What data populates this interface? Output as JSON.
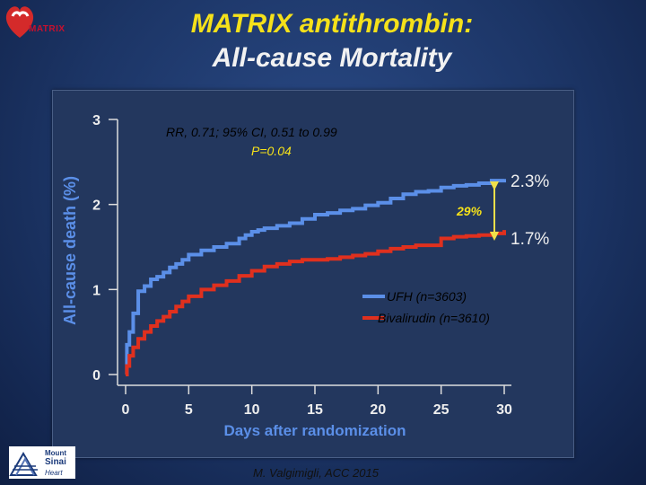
{
  "title": {
    "line1": "MATRIX antithrombin:",
    "line2": "All-cause Mortality"
  },
  "logo": {
    "text": "MATRIX"
  },
  "institution_logo": {
    "line1": "Mount",
    "line2": "Sinai",
    "line3": "Heart"
  },
  "footer": "M. Valgimigli, ACC 2015",
  "colors": {
    "ufh": "#5b8fe8",
    "bivalirudin": "#e0301e",
    "title_yellow": "#f5e11a",
    "arrow": "#f0e04a"
  },
  "chart_data": {
    "type": "line",
    "xlabel": "Days after randomization",
    "ylabel": "All-cause death (%)",
    "xlim": [
      0,
      30
    ],
    "ylim": [
      0,
      3
    ],
    "xticks": [
      0,
      5,
      10,
      15,
      20,
      25,
      30
    ],
    "yticks": [
      0,
      1,
      2,
      3
    ],
    "annotation_stats_line1": "RR, 0.71; 95% CI, 0.51 to 0.99",
    "annotation_stats_line2": "P=0.04",
    "reduction_label": "29%",
    "end_label_ufh": "2.3%",
    "end_label_biv": "1.7%",
    "series": [
      {
        "name": "UFH (n=3603)",
        "x": [
          0,
          0.1,
          0.3,
          0.6,
          1,
          1.5,
          2,
          2.5,
          3,
          3.5,
          4,
          4.5,
          5,
          6,
          7,
          8,
          9,
          9.5,
          10,
          10.5,
          11,
          12,
          13,
          14,
          15,
          16,
          17,
          18,
          19,
          20,
          21,
          22,
          23,
          24,
          25,
          26,
          27,
          28,
          29,
          30
        ],
        "values": [
          0,
          0.35,
          0.5,
          0.72,
          0.98,
          1.04,
          1.12,
          1.15,
          1.2,
          1.26,
          1.3,
          1.35,
          1.41,
          1.46,
          1.5,
          1.54,
          1.6,
          1.64,
          1.68,
          1.7,
          1.72,
          1.75,
          1.78,
          1.83,
          1.88,
          1.9,
          1.93,
          1.95,
          1.99,
          2.02,
          2.07,
          2.12,
          2.15,
          2.16,
          2.2,
          2.22,
          2.23,
          2.25,
          2.28,
          2.3
        ]
      },
      {
        "name": "Bivalirudin (n=3610)",
        "x": [
          0,
          0.1,
          0.3,
          0.6,
          1,
          1.5,
          2,
          2.5,
          3,
          3.5,
          4,
          4.5,
          5,
          6,
          7,
          8,
          9,
          10,
          11,
          12,
          13,
          14,
          15,
          16,
          17,
          18,
          19,
          20,
          21,
          22,
          23,
          24,
          25,
          26,
          27,
          28,
          29,
          30
        ],
        "values": [
          0,
          0.1,
          0.22,
          0.32,
          0.42,
          0.5,
          0.57,
          0.63,
          0.68,
          0.74,
          0.8,
          0.86,
          0.92,
          1.0,
          1.05,
          1.1,
          1.16,
          1.22,
          1.27,
          1.3,
          1.33,
          1.35,
          1.35,
          1.36,
          1.38,
          1.4,
          1.42,
          1.45,
          1.48,
          1.5,
          1.52,
          1.52,
          1.6,
          1.62,
          1.63,
          1.64,
          1.66,
          1.7
        ]
      }
    ]
  }
}
